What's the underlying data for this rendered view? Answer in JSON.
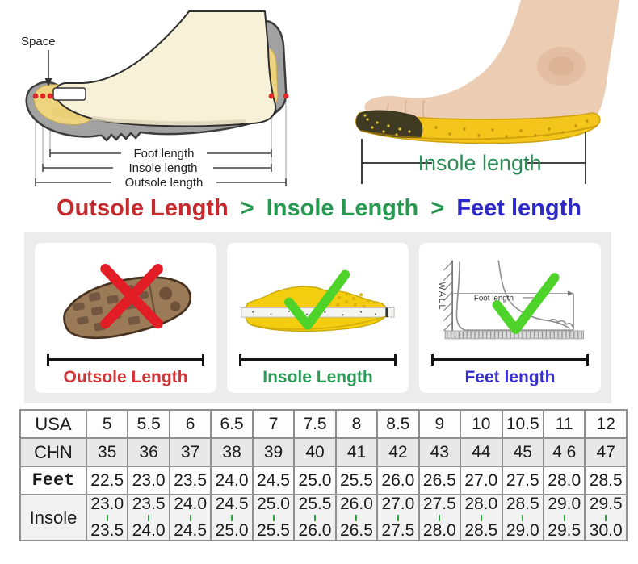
{
  "colors": {
    "heading_red": "#c52b2e",
    "heading_green": "#27984f",
    "heading_blue": "#2d28c8",
    "panel_label_red": "#d23337",
    "panel_label_green": "#2a9d57",
    "panel_label_blue": "#372fd0",
    "check_green": "#4ed32a",
    "cross_red": "#e21d25",
    "table_feet_blue": "#2323c2",
    "table_insole_green": "#2f9e3f",
    "insole_yellow": "#f4c51a"
  },
  "shoe_diagram": {
    "space_label": "Space",
    "foot_length_label": "Foot length",
    "insole_length_label": "Insole length",
    "outsole_length_label": "Outsole length"
  },
  "insole_photo": {
    "caption": "Insole length"
  },
  "heading": {
    "outsole": "Outsole Length",
    "separator1": ">",
    "insole": "Insole Length",
    "separator2": ">",
    "feet": "Feet length"
  },
  "panels": {
    "outsole": {
      "label": "Outsole Length"
    },
    "insole": {
      "label": "Insole Length"
    },
    "feet": {
      "label": "Feet length",
      "wall_label": "WALL",
      "inner_label": "Foot length"
    }
  },
  "size_table": {
    "rows": [
      {
        "id": "usa",
        "label": "USA",
        "values": [
          "5",
          "5.5",
          "6",
          "6.5",
          "7",
          "7.5",
          "8",
          "8.5",
          "9",
          "10",
          "10.5",
          "11",
          "12"
        ]
      },
      {
        "id": "chn",
        "label": "CHN",
        "values": [
          "35",
          "36",
          "37",
          "38",
          "39",
          "40",
          "41",
          "42",
          "43",
          "44",
          "45",
          "4 6",
          "47"
        ]
      },
      {
        "id": "feet",
        "label": "Feet",
        "values": [
          "22.5",
          "23.0",
          "23.5",
          "24.0",
          "24.5",
          "25.0",
          "25.5",
          "26.0",
          "26.5",
          "27.0",
          "27.5",
          "28.0",
          "28.5"
        ]
      },
      {
        "id": "insole",
        "label": "Insole",
        "top": [
          "23.0",
          "23.5",
          "24.0",
          "24.5",
          "25.0",
          "25.5",
          "26.0",
          "27.0",
          "27.5",
          "28.0",
          "28.5",
          "29.0",
          "29.5"
        ],
        "bottom": [
          "23.5",
          "24.0",
          "24.5",
          "25.0",
          "25.5",
          "26.0",
          "26.5",
          "27.5",
          "28.0",
          "28.5",
          "29.0",
          "29.5",
          "30.0"
        ]
      }
    ]
  }
}
